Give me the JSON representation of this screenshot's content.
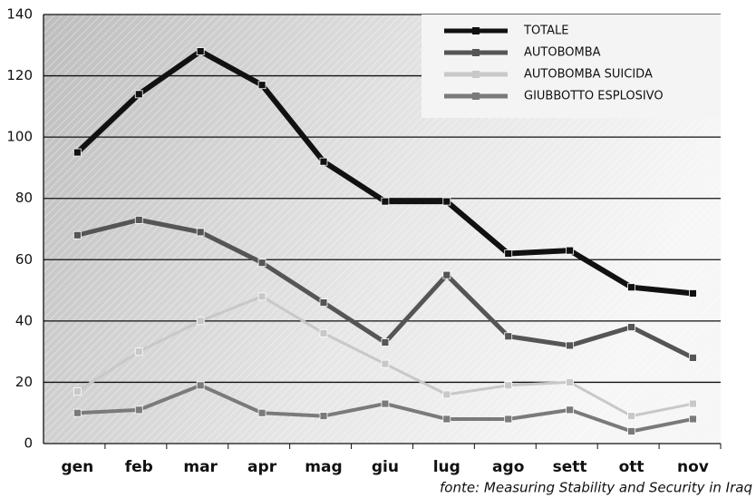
{
  "chart_data": {
    "type": "line",
    "categories": [
      "gen",
      "feb",
      "mar",
      "apr",
      "mag",
      "giu",
      "lug",
      "ago",
      "sett",
      "ott",
      "nov"
    ],
    "series": [
      {
        "name": "TOTALE",
        "color": "#111111",
        "values": [
          95,
          114,
          128,
          117,
          92,
          79,
          79,
          62,
          63,
          51,
          49
        ]
      },
      {
        "name": "AUTOBOMBA",
        "color": "#555555",
        "values": [
          68,
          73,
          69,
          59,
          46,
          33,
          55,
          35,
          32,
          38,
          28
        ]
      },
      {
        "name": "AUTOBOMBA SUICIDA",
        "color": "#c8c8c8",
        "values": [
          17,
          30,
          40,
          48,
          36,
          26,
          16,
          19,
          20,
          9,
          13
        ]
      },
      {
        "name": "GIUBBOTTO ESPLOSIVO",
        "color": "#7a7a7a",
        "values": [
          10,
          11,
          19,
          10,
          9,
          13,
          8,
          8,
          11,
          4,
          8
        ]
      }
    ],
    "ylim": [
      0,
      140
    ],
    "yticks": [
      0,
      20,
      40,
      60,
      80,
      100,
      120,
      140
    ],
    "grid": true,
    "legend": "top-right",
    "source": "fonte: Measuring Stability and Security in Iraq"
  }
}
